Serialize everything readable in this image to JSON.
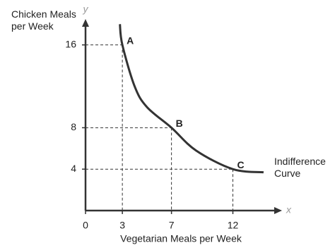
{
  "chart_data": {
    "type": "line",
    "x_label": "Vegetarian Meals per Week",
    "y_label": "Chicken Meals per Week",
    "x_axis_symbol": "x",
    "y_axis_symbol": "y",
    "xlim": [
      0,
      16
    ],
    "ylim": [
      0,
      18.5
    ],
    "xticks": [
      0,
      3,
      7,
      12
    ],
    "yticks": [
      4,
      8,
      16
    ],
    "x": [
      2.8,
      3,
      4,
      5,
      7,
      9,
      12,
      14.5
    ],
    "series": [
      {
        "name": "Indifference Curve",
        "color": "#333333",
        "values": [
          18,
          16,
          12,
          10,
          8,
          5.8,
          4,
          3.7
        ]
      }
    ],
    "points": [
      {
        "label": "A",
        "x": 3,
        "y": 16
      },
      {
        "label": "B",
        "x": 7,
        "y": 8
      },
      {
        "label": "C",
        "x": 12,
        "y": 4
      }
    ]
  }
}
